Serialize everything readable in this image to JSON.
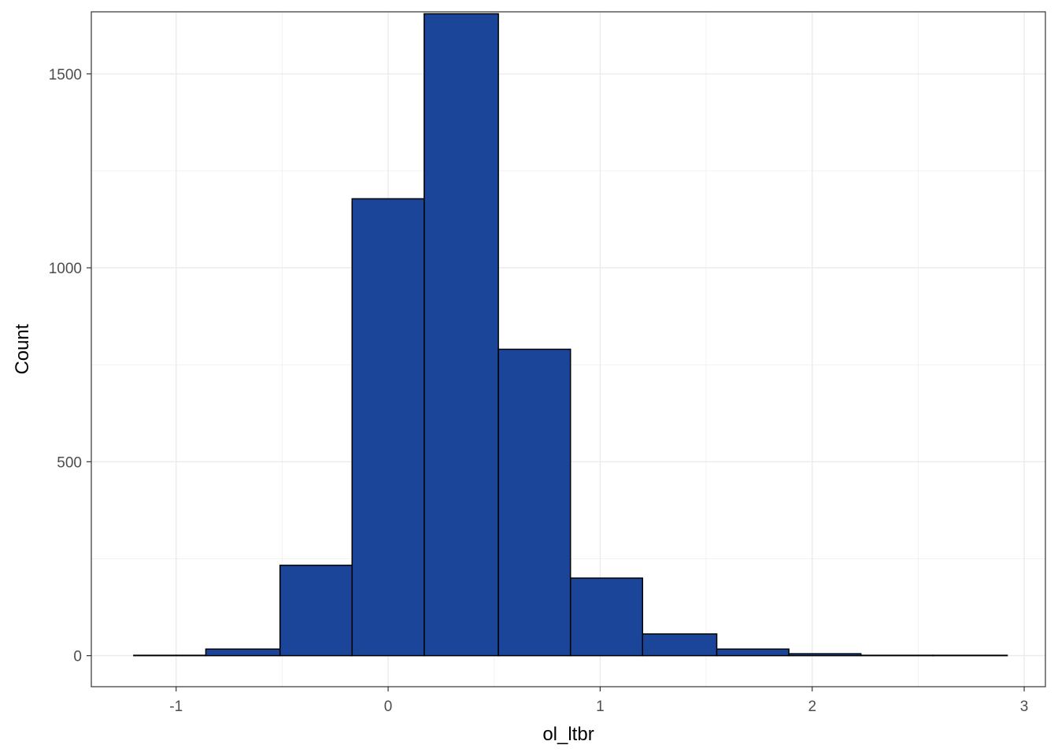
{
  "chart_data": {
    "type": "bar",
    "subtype": "histogram",
    "title": "",
    "xlabel": "ol_ltbr",
    "ylabel": "Count",
    "bar_color": "#1A4599",
    "bar_edge_color": "#000000",
    "grid": true,
    "theme": "bw",
    "xlim": [
      -1.4,
      3.1
    ],
    "ylim": [
      -80,
      1660
    ],
    "x_ticks": [
      -1,
      0,
      1,
      2,
      3
    ],
    "x_tick_labels": [
      "-1",
      "0",
      "1",
      "2",
      "3"
    ],
    "y_ticks": [
      0,
      500,
      1000,
      1500
    ],
    "y_tick_labels": [
      "0",
      "500",
      "1000",
      "1500"
    ],
    "bins": [
      {
        "x0": -1.2,
        "x1": -0.86,
        "count": 1
      },
      {
        "x0": -0.86,
        "x1": -0.51,
        "count": 17
      },
      {
        "x0": -0.51,
        "x1": -0.17,
        "count": 233
      },
      {
        "x0": -0.17,
        "x1": 0.17,
        "count": 1178
      },
      {
        "x0": 0.17,
        "x1": 0.52,
        "count": 1655
      },
      {
        "x0": 0.52,
        "x1": 0.86,
        "count": 790
      },
      {
        "x0": 0.86,
        "x1": 1.2,
        "count": 200
      },
      {
        "x0": 1.2,
        "x1": 1.55,
        "count": 56
      },
      {
        "x0": 1.55,
        "x1": 1.89,
        "count": 17
      },
      {
        "x0": 1.89,
        "x1": 2.23,
        "count": 5
      },
      {
        "x0": 2.23,
        "x1": 2.57,
        "count": 1
      },
      {
        "x0": 2.57,
        "x1": 2.92,
        "count": 1
      }
    ]
  }
}
